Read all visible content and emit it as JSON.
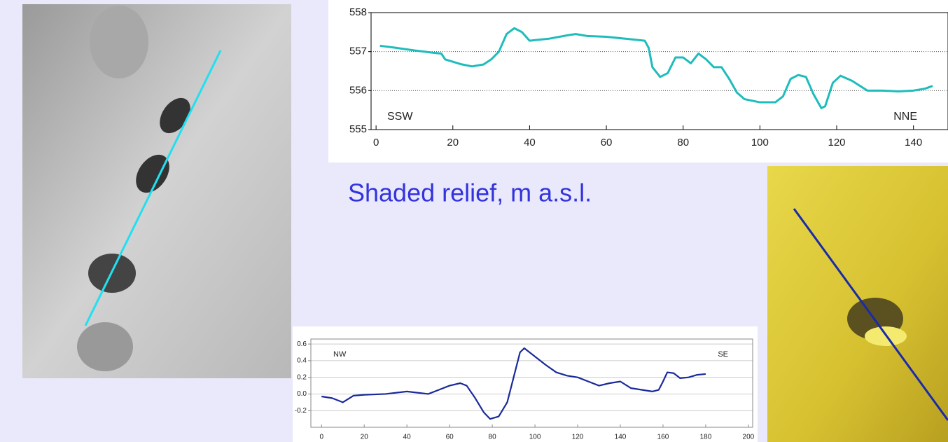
{
  "caption": "Shaded relief, m a.s.l.",
  "chart_data": [
    {
      "type": "line",
      "annotations": [
        "SSW",
        "NNE"
      ],
      "x": [
        1,
        5,
        10,
        15,
        17,
        18,
        22,
        25,
        28,
        30,
        32,
        34,
        36,
        38,
        40,
        45,
        50,
        52,
        55,
        60,
        65,
        70,
        71,
        72,
        74,
        76,
        78,
        80,
        82,
        84,
        86,
        88,
        90,
        92,
        94,
        96,
        100,
        104,
        106,
        108,
        110,
        112,
        114,
        116,
        117,
        119,
        121,
        124,
        128,
        132,
        136,
        140,
        143,
        145
      ],
      "series": [
        {
          "color": "#1fbcbc",
          "values": [
            557.15,
            557.1,
            557.03,
            556.97,
            556.95,
            556.8,
            556.68,
            556.62,
            556.67,
            556.8,
            557.0,
            557.45,
            557.6,
            557.5,
            557.28,
            557.33,
            557.42,
            557.45,
            557.4,
            557.38,
            557.33,
            557.28,
            557.1,
            556.6,
            556.35,
            556.45,
            556.85,
            556.85,
            556.7,
            556.95,
            556.8,
            556.6,
            556.6,
            556.3,
            555.95,
            555.78,
            555.7,
            555.7,
            555.85,
            556.3,
            556.4,
            556.35,
            555.9,
            555.55,
            555.6,
            556.2,
            556.38,
            556.25,
            556.0,
            556.0,
            555.98,
            556.0,
            556.05,
            556.12
          ]
        }
      ],
      "xlim": [
        -1.3,
        149
      ],
      "ylim": [
        555,
        558
      ],
      "xticks": [
        0,
        20,
        40,
        60,
        80,
        100,
        120,
        140
      ],
      "yticks": [
        555,
        556,
        557,
        558
      ],
      "grid": true
    },
    {
      "type": "line",
      "annotations": [
        "NW",
        "SE"
      ],
      "x": [
        0,
        5,
        10,
        15,
        20,
        30,
        40,
        50,
        55,
        60,
        65,
        68,
        72,
        76,
        79,
        83,
        87,
        90,
        93,
        95,
        100,
        105,
        110,
        115,
        120,
        125,
        130,
        135,
        140,
        145,
        150,
        155,
        158,
        160,
        162,
        165,
        168,
        172,
        176,
        180
      ],
      "series": [
        {
          "color": "#1a2a9a",
          "values": [
            -0.03,
            -0.05,
            -0.1,
            -0.02,
            -0.01,
            0.0,
            0.03,
            0.0,
            0.05,
            0.1,
            0.13,
            0.1,
            -0.05,
            -0.22,
            -0.3,
            -0.27,
            -0.1,
            0.2,
            0.5,
            0.55,
            0.45,
            0.35,
            0.26,
            0.22,
            0.2,
            0.15,
            0.1,
            0.13,
            0.15,
            0.07,
            0.05,
            0.03,
            0.05,
            0.15,
            0.26,
            0.25,
            0.19,
            0.2,
            0.23,
            0.24
          ]
        }
      ],
      "xlim": [
        -5,
        202
      ],
      "ylim": [
        -0.4,
        0.66
      ],
      "xticks": [
        0,
        20,
        40,
        60,
        80,
        100,
        120,
        140,
        160,
        180,
        200
      ],
      "yticks": [
        -0.2,
        {
          "value": 0,
          "label": "0.0"
        },
        0.2,
        0.4,
        0.6
      ],
      "grid": true
    }
  ]
}
